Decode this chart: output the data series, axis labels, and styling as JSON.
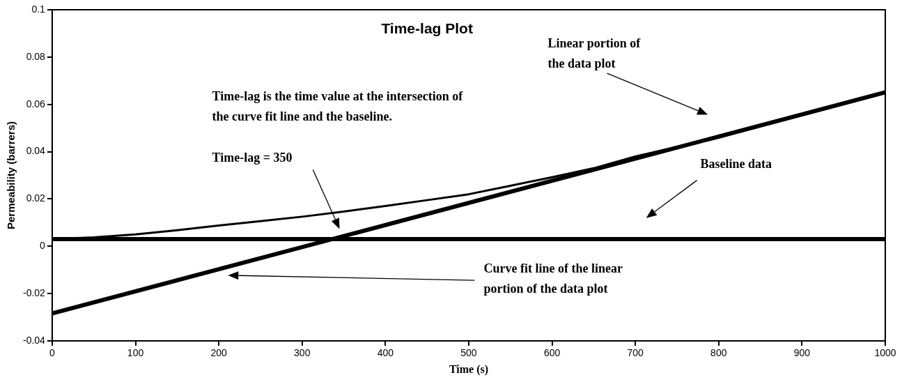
{
  "chart_data": {
    "type": "line",
    "title": "Time-lag Plot",
    "xlabel": "Time (s)",
    "ylabel": "Permeability (barrers)",
    "series": [
      {
        "color": "#000000",
        "x": [
          0,
          50,
          100,
          150,
          200,
          250,
          300,
          350,
          400,
          450,
          500,
          550,
          600,
          650,
          700,
          750,
          800,
          850,
          900,
          950,
          1000
        ],
        "values": [
          0.003,
          0.0038,
          0.005,
          0.0068,
          0.0088,
          0.0106,
          0.0125,
          0.0147,
          0.017,
          0.0195,
          0.022,
          0.0256,
          0.0292,
          0.033,
          0.038,
          0.042,
          0.046,
          0.0508,
          0.0555,
          0.0602,
          0.065
        ]
      },
      {
        "color": "#000000",
        "x": [
          0,
          1000
        ],
        "values": [
          0.003,
          0.003
        ]
      },
      {
        "color": "#000000",
        "x": [
          0,
          1000
        ],
        "values": [
          -0.0284,
          0.0651
        ]
      }
    ],
    "annotations": [
      "Time-lag is the time value at the intersection of the curve fit line and the baseline.",
      "Time-lag = 350",
      "Linear portion of the data plot",
      "Baseline data",
      "Curve fit line of the linear portion of the data plot"
    ],
    "xlim": [
      0,
      1000
    ],
    "xticks": [
      0,
      100,
      200,
      300,
      400,
      500,
      600,
      700,
      800,
      900,
      1000
    ],
    "ylim": [
      -0.04,
      0.1
    ],
    "yticks": [
      -0.04,
      -0.02,
      0,
      0.02,
      0.04,
      0.06,
      0.08,
      0.1
    ],
    "grid": false,
    "legend": false,
    "marker": "none",
    "line_style": "solid"
  }
}
